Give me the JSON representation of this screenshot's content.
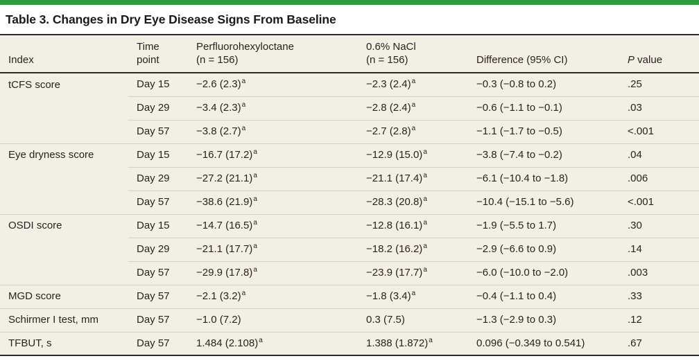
{
  "title": "Table 3. Changes in Dry Eye Disease Signs From Baseline",
  "colors": {
    "accent_green": "#2d9c41",
    "table_background": "#f2efe4",
    "dark_rule": "#2b2b2b",
    "light_rule": "#d5d2c5",
    "text": "#282320"
  },
  "header": {
    "index": "Index",
    "time_l1": "Time",
    "time_l2": "point",
    "drug_l1": "Perfluorohexyloctane",
    "drug_l2": "(n = 156)",
    "control_l1": "0.6% NaCl",
    "control_l2": "(n = 156)",
    "difference": "Difference (95% CI)",
    "p_italic": "P",
    "p_rest": " value"
  },
  "footnote_marker": "a",
  "rows": [
    {
      "index": "tCFS score",
      "group_start": true,
      "time": "Day 15",
      "drug": "−2.6 (2.3)",
      "drug_sup": "a",
      "control": "−2.3 (2.4)",
      "control_sup": "a",
      "diff": "−0.3 (−0.8 to 0.2)",
      "p": ".25"
    },
    {
      "index": "",
      "group_start": false,
      "time": "Day 29",
      "drug": "−3.4 (2.3)",
      "drug_sup": "a",
      "control": "−2.8 (2.4)",
      "control_sup": "a",
      "diff": "−0.6 (−1.1 to −0.1)",
      "p": ".03"
    },
    {
      "index": "",
      "group_start": false,
      "time": "Day 57",
      "drug": "−3.8 (2.7)",
      "drug_sup": "a",
      "control": "−2.7 (2.8)",
      "control_sup": "a",
      "diff": "−1.1 (−1.7 to −0.5)",
      "p": "<.001"
    },
    {
      "index": "Eye dryness score",
      "group_start": true,
      "time": "Day 15",
      "drug": "−16.7 (17.2)",
      "drug_sup": "a",
      "control": "−12.9 (15.0)",
      "control_sup": "a",
      "diff": "−3.8 (−7.4 to −0.2)",
      "p": ".04"
    },
    {
      "index": "",
      "group_start": false,
      "time": "Day 29",
      "drug": "−27.2 (21.1)",
      "drug_sup": "a",
      "control": "−21.1 (17.4)",
      "control_sup": "a",
      "diff": "−6.1 (−10.4 to −1.8)",
      "p": ".006"
    },
    {
      "index": "",
      "group_start": false,
      "time": "Day 57",
      "drug": "−38.6 (21.9)",
      "drug_sup": "a",
      "control": "−28.3 (20.8)",
      "control_sup": "a",
      "diff": "−10.4 (−15.1 to −5.6)",
      "p": "<.001"
    },
    {
      "index": "OSDI score",
      "group_start": true,
      "time": "Day 15",
      "drug": "−14.7 (16.5)",
      "drug_sup": "a",
      "control": "−12.8 (16.1)",
      "control_sup": "a",
      "diff": "−1.9 (−5.5 to 1.7)",
      "p": ".30"
    },
    {
      "index": "",
      "group_start": false,
      "time": "Day 29",
      "drug": "−21.1 (17.7)",
      "drug_sup": "a",
      "control": "−18.2 (16.2)",
      "control_sup": "a",
      "diff": "−2.9 (−6.6 to 0.9)",
      "p": ".14"
    },
    {
      "index": "",
      "group_start": false,
      "time": "Day 57",
      "drug": "−29.9 (17.8)",
      "drug_sup": "a",
      "control": "−23.9 (17.7)",
      "control_sup": "a",
      "diff": "−6.0 (−10.0 to −2.0)",
      "p": ".003"
    },
    {
      "index": "MGD score",
      "group_start": true,
      "time": "Day 57",
      "drug": "−2.1 (3.2)",
      "drug_sup": "a",
      "control": "−1.8 (3.4)",
      "control_sup": "a",
      "diff": "−0.4 (−1.1 to 0.4)",
      "p": ".33"
    },
    {
      "index": "Schirmer I test, mm",
      "group_start": true,
      "time": "Day 57",
      "drug": "−1.0 (7.2)",
      "drug_sup": "",
      "control": "0.3 (7.5)",
      "control_sup": "",
      "diff": "−1.3 (−2.9 to 0.3)",
      "p": ".12"
    },
    {
      "index": "TFBUT, s",
      "group_start": true,
      "time": "Day 57",
      "drug": "1.484 (2.108)",
      "drug_sup": "a",
      "control": "1.388 (1.872)",
      "control_sup": "a",
      "diff": "0.096 (−0.349 to 0.541)",
      "p": ".67"
    }
  ]
}
